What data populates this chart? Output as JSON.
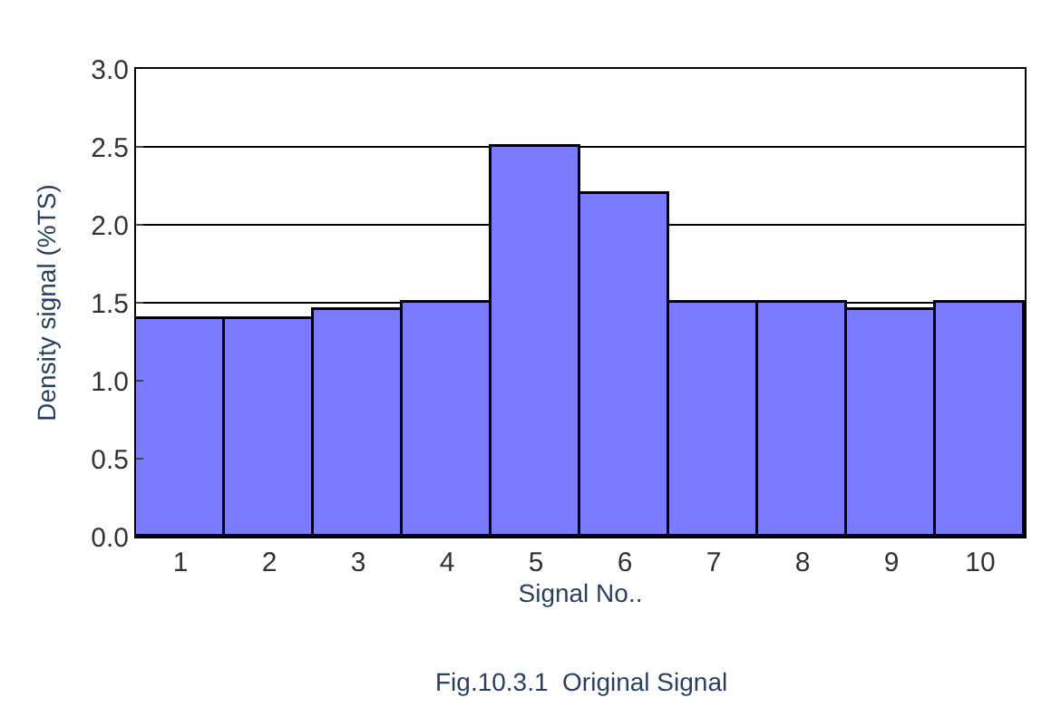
{
  "chart_data": {
    "type": "bar",
    "xlabel": "Signal No..",
    "ylabel": "Density signal (%TS)",
    "categories": [
      "1",
      "2",
      "3",
      "4",
      "5",
      "6",
      "7",
      "8",
      "9",
      "10"
    ],
    "values": [
      1.4,
      1.4,
      1.45,
      1.5,
      2.5,
      2.2,
      1.5,
      1.5,
      1.45,
      1.5
    ],
    "color": "#7b7bff",
    "ylim": [
      0,
      3
    ],
    "yticks": [
      {
        "value": 0,
        "label": "0.0"
      },
      0.5,
      {
        "value": 1,
        "label": "1.0"
      },
      1.5,
      {
        "value": 2,
        "label": "2.0"
      },
      2.5,
      {
        "value": 3,
        "label": "3.0"
      }
    ],
    "grid": "y",
    "annotations": [
      "Fig.10.3.1  Original Signal"
    ]
  }
}
